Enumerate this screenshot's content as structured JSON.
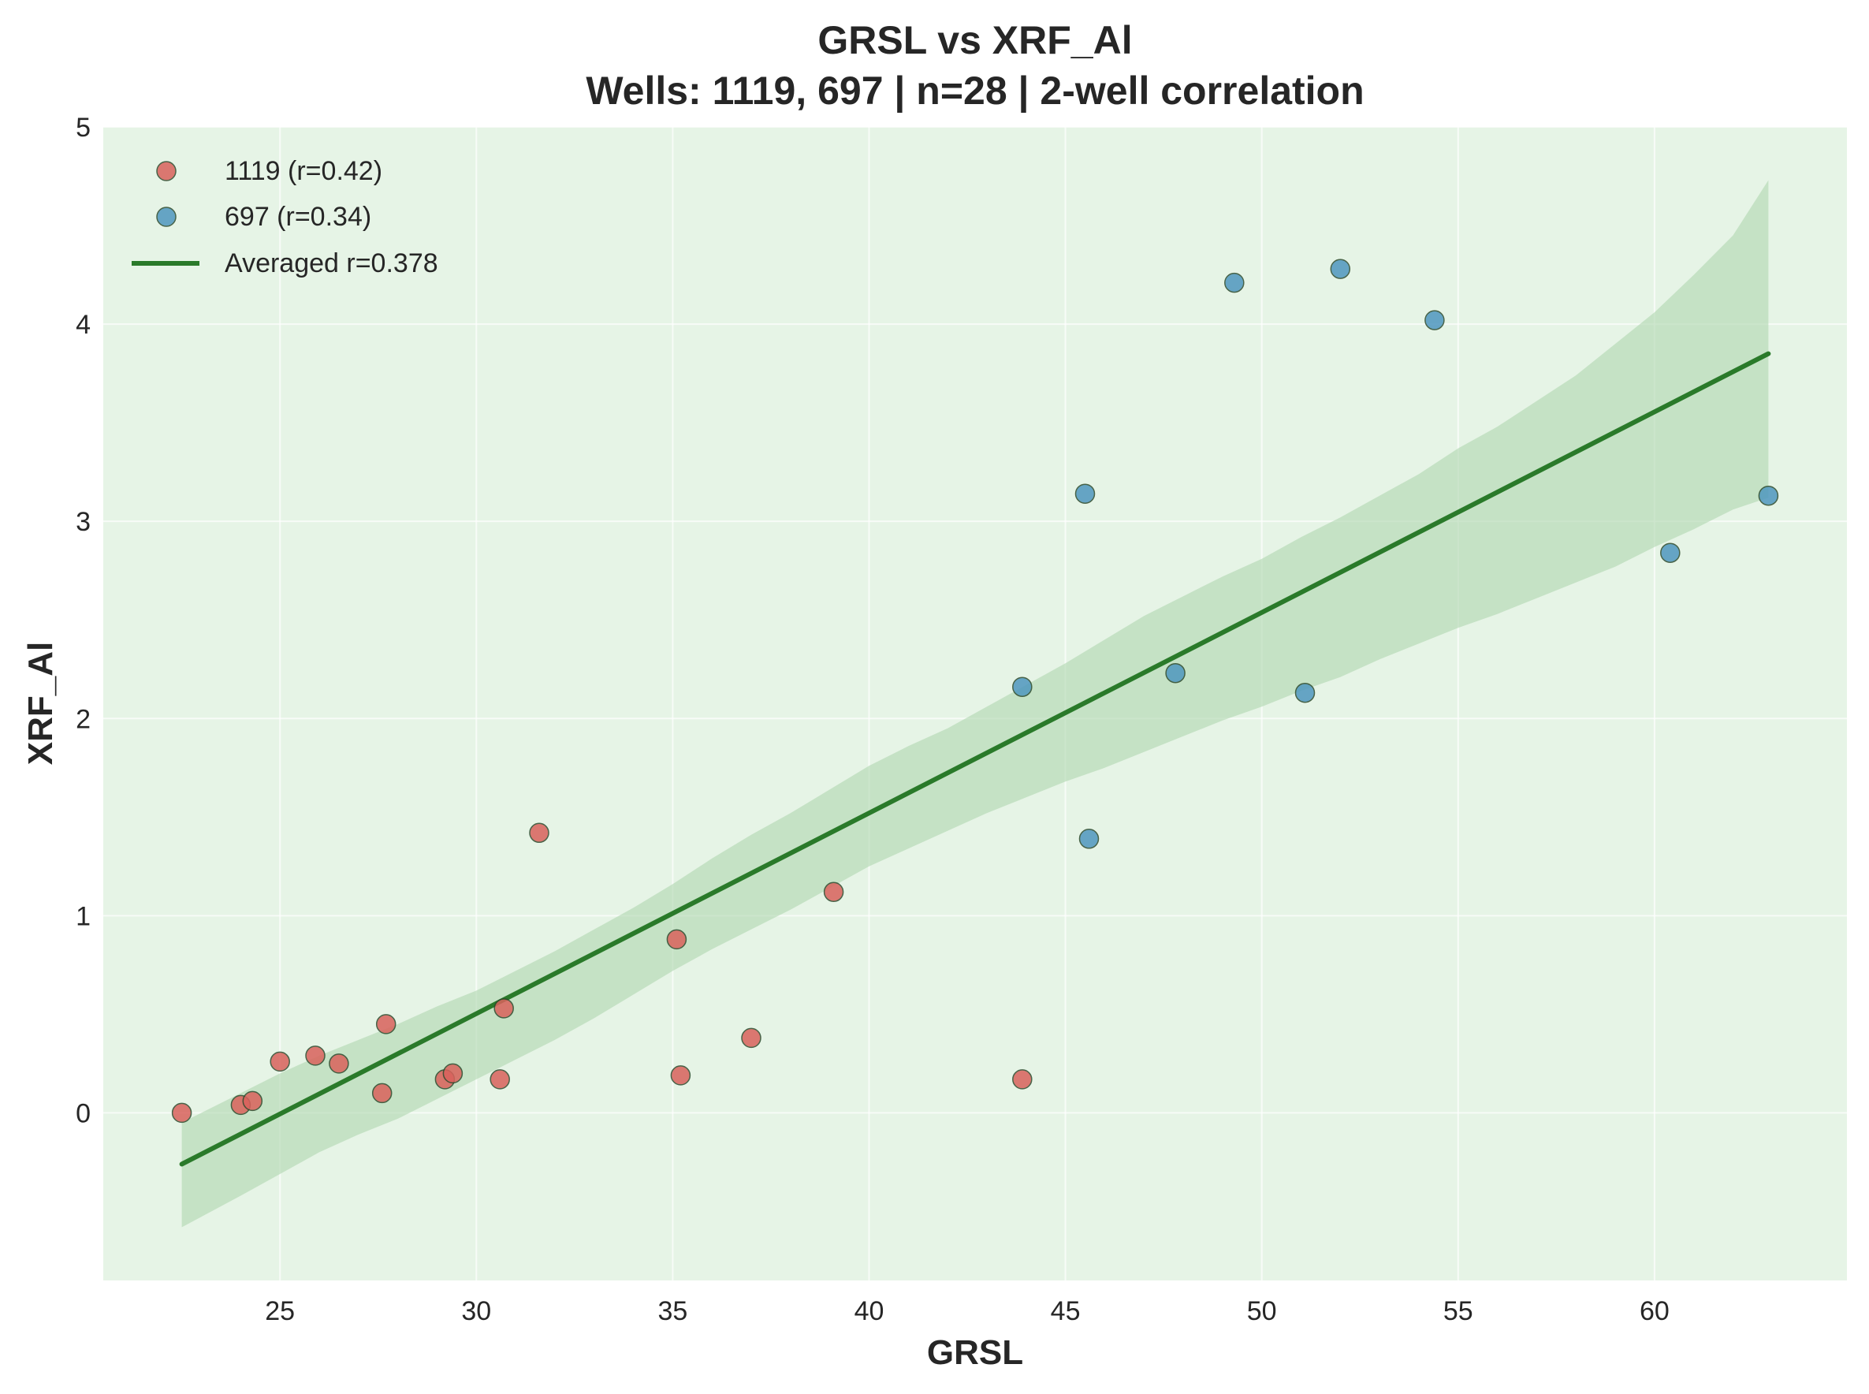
{
  "chart_data": {
    "type": "scatter",
    "title": "GRSL vs XRF_Al",
    "subtitle": "Wells: 1119, 697 | n=28 | 2-well correlation",
    "xlabel": "GRSL",
    "ylabel": "XRF_Al",
    "xlim": [
      20.5,
      64.9
    ],
    "ylim": [
      -0.85,
      5.0
    ],
    "x_ticks": [
      25,
      30,
      35,
      40,
      45,
      50,
      55,
      60
    ],
    "y_ticks": [
      0,
      1,
      2,
      3,
      4,
      5
    ],
    "grid": true,
    "legend_position": "top-left",
    "background_color": "#e6f4e6",
    "series": [
      {
        "name": "1119 (r=0.42)",
        "color": "#d9625c",
        "points": [
          [
            22.5,
            0.0
          ],
          [
            24.0,
            0.04
          ],
          [
            24.3,
            0.06
          ],
          [
            25.0,
            0.26
          ],
          [
            25.9,
            0.29
          ],
          [
            26.5,
            0.25
          ],
          [
            27.6,
            0.1
          ],
          [
            27.7,
            0.45
          ],
          [
            29.2,
            0.17
          ],
          [
            29.4,
            0.2
          ],
          [
            30.6,
            0.17
          ],
          [
            30.7,
            0.53
          ],
          [
            31.6,
            1.42
          ],
          [
            35.1,
            0.88
          ],
          [
            35.2,
            0.19
          ],
          [
            37.0,
            0.38
          ],
          [
            39.1,
            1.12
          ],
          [
            43.9,
            0.17
          ]
        ]
      },
      {
        "name": "697 (r=0.34)",
        "color": "#4f97bf",
        "points": [
          [
            43.9,
            2.16
          ],
          [
            45.5,
            3.14
          ],
          [
            45.6,
            1.39
          ],
          [
            47.8,
            2.23
          ],
          [
            49.3,
            4.21
          ],
          [
            51.1,
            2.13
          ],
          [
            52.0,
            4.28
          ],
          [
            54.4,
            4.02
          ],
          [
            60.4,
            2.84
          ],
          [
            62.9,
            3.13
          ]
        ]
      }
    ],
    "fit_line": {
      "name": "Averaged r=0.378",
      "color": "#2a7a2a",
      "points": [
        [
          22.5,
          -0.26
        ],
        [
          62.9,
          3.85
        ]
      ]
    },
    "confidence_band": {
      "color": "#b4d8b4",
      "upper": [
        [
          22.5,
          -0.05
        ],
        [
          24.0,
          0.1
        ],
        [
          25.0,
          0.2
        ],
        [
          26.0,
          0.29
        ],
        [
          27.0,
          0.37
        ],
        [
          28.0,
          0.45
        ],
        [
          29.0,
          0.54
        ],
        [
          30.0,
          0.62
        ],
        [
          31.0,
          0.72
        ],
        [
          32.0,
          0.82
        ],
        [
          33.0,
          0.93
        ],
        [
          34.0,
          1.04
        ],
        [
          35.0,
          1.16
        ],
        [
          36.0,
          1.29
        ],
        [
          37.0,
          1.41
        ],
        [
          38.0,
          1.52
        ],
        [
          39.0,
          1.64
        ],
        [
          40.0,
          1.76
        ],
        [
          41.0,
          1.86
        ],
        [
          42.0,
          1.95
        ],
        [
          43.0,
          2.06
        ],
        [
          44.0,
          2.17
        ],
        [
          45.0,
          2.28
        ],
        [
          46.0,
          2.4
        ],
        [
          47.0,
          2.52
        ],
        [
          48.0,
          2.62
        ],
        [
          49.0,
          2.72
        ],
        [
          50.0,
          2.81
        ],
        [
          51.0,
          2.92
        ],
        [
          52.0,
          3.02
        ],
        [
          53.0,
          3.13
        ],
        [
          54.0,
          3.24
        ],
        [
          55.0,
          3.37
        ],
        [
          56.0,
          3.48
        ],
        [
          57.0,
          3.61
        ],
        [
          58.0,
          3.74
        ],
        [
          59.0,
          3.9
        ],
        [
          60.0,
          4.06
        ],
        [
          61.0,
          4.25
        ],
        [
          62.0,
          4.45
        ],
        [
          62.9,
          4.73
        ]
      ],
      "lower": [
        [
          22.5,
          -0.58
        ],
        [
          24.0,
          -0.42
        ],
        [
          25.0,
          -0.31
        ],
        [
          26.0,
          -0.2
        ],
        [
          27.0,
          -0.11
        ],
        [
          28.0,
          -0.03
        ],
        [
          29.0,
          0.07
        ],
        [
          30.0,
          0.17
        ],
        [
          31.0,
          0.27
        ],
        [
          32.0,
          0.37
        ],
        [
          33.0,
          0.48
        ],
        [
          34.0,
          0.6
        ],
        [
          35.0,
          0.72
        ],
        [
          36.0,
          0.83
        ],
        [
          37.0,
          0.93
        ],
        [
          38.0,
          1.03
        ],
        [
          39.0,
          1.14
        ],
        [
          40.0,
          1.25
        ],
        [
          41.0,
          1.34
        ],
        [
          42.0,
          1.43
        ],
        [
          43.0,
          1.52
        ],
        [
          44.0,
          1.6
        ],
        [
          45.0,
          1.68
        ],
        [
          46.0,
          1.75
        ],
        [
          47.0,
          1.83
        ],
        [
          48.0,
          1.91
        ],
        [
          49.0,
          1.99
        ],
        [
          50.0,
          2.06
        ],
        [
          51.0,
          2.14
        ],
        [
          52.0,
          2.21
        ],
        [
          53.0,
          2.3
        ],
        [
          54.0,
          2.38
        ],
        [
          55.0,
          2.46
        ],
        [
          56.0,
          2.53
        ],
        [
          57.0,
          2.61
        ],
        [
          58.0,
          2.69
        ],
        [
          59.0,
          2.77
        ],
        [
          60.0,
          2.87
        ],
        [
          61.0,
          2.96
        ],
        [
          62.0,
          3.06
        ],
        [
          62.9,
          3.12
        ]
      ]
    }
  }
}
